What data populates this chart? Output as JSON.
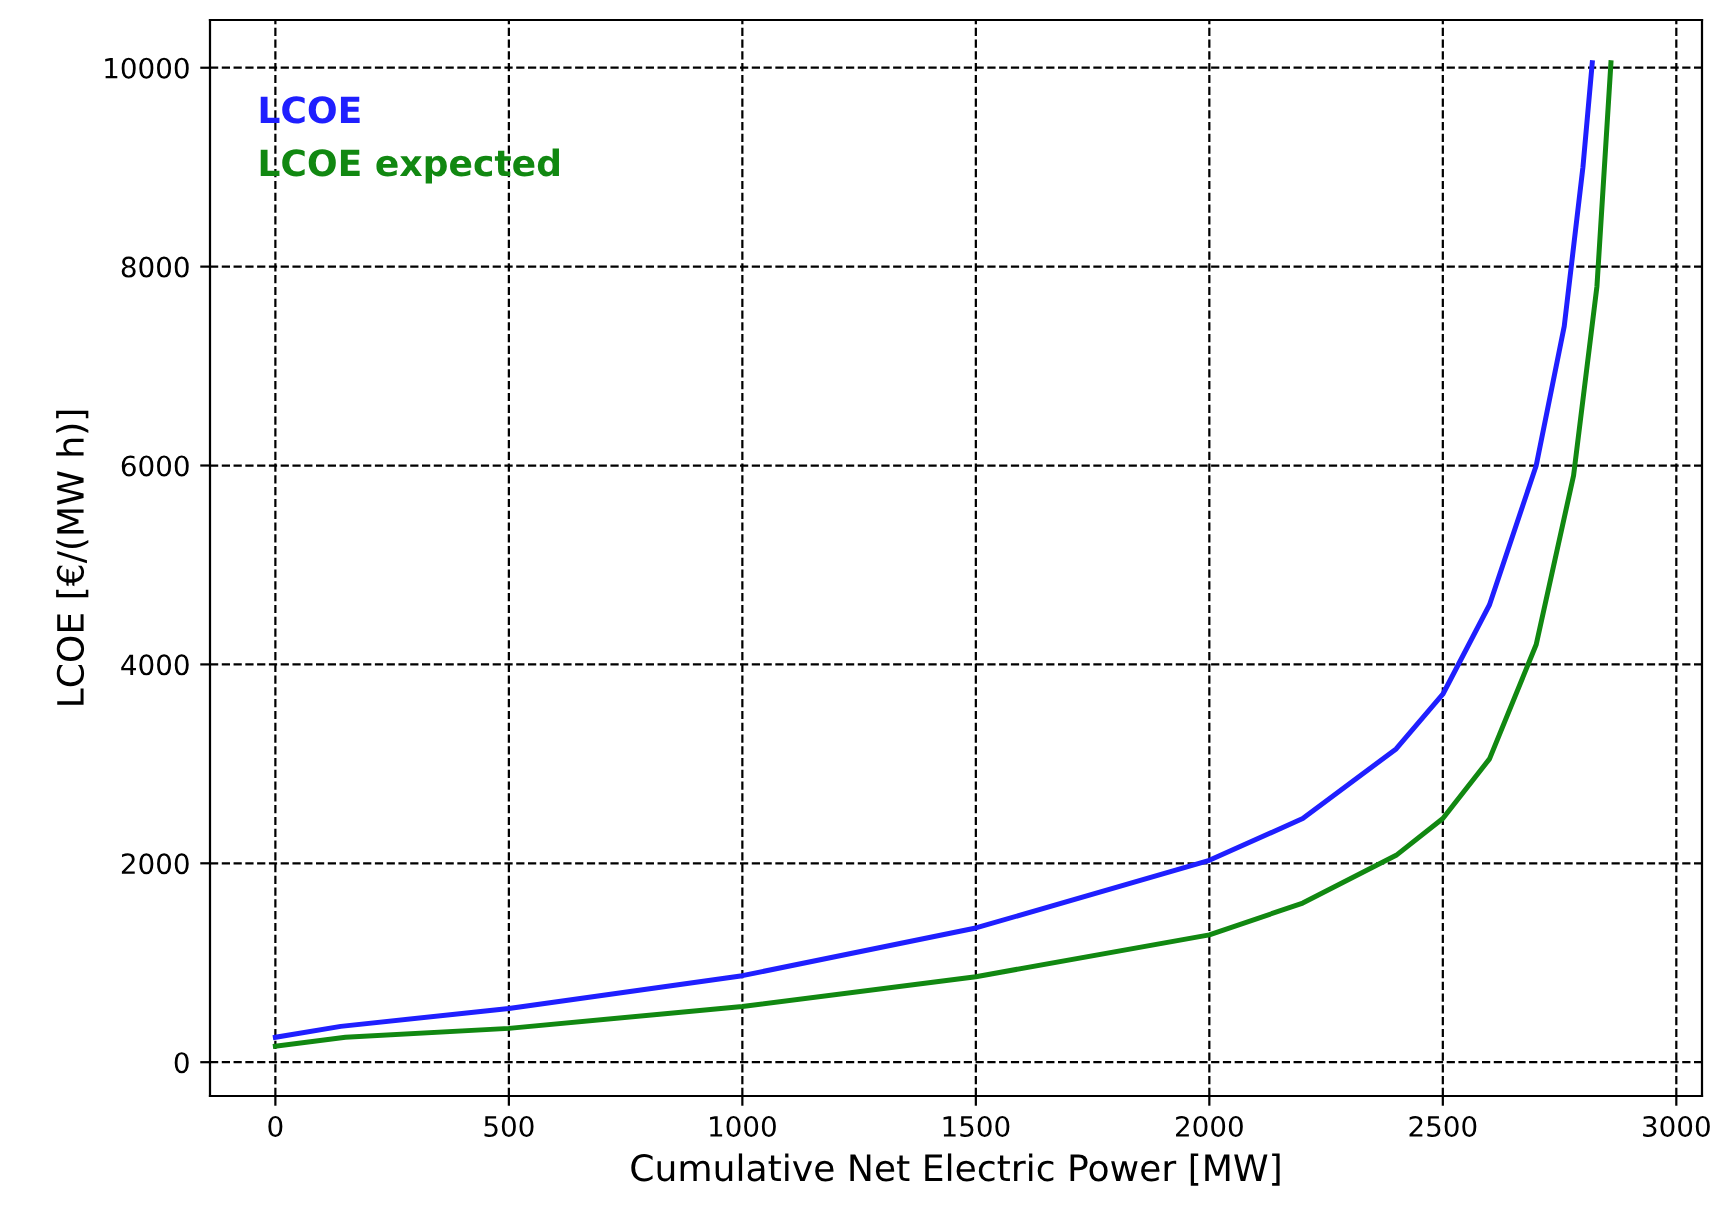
{
  "chart_data": {
    "type": "line",
    "xlabel": "Cumulative Net Electric Power [MW]",
    "ylabel": "LCOE [€/(MW h)]",
    "xlim": [
      -140,
      3055
    ],
    "ylim": [
      -340,
      10480
    ],
    "xticks": [
      0,
      500,
      1000,
      1500,
      2000,
      2500,
      3000
    ],
    "yticks": [
      0,
      2000,
      4000,
      6000,
      8000,
      10000
    ],
    "grid": true,
    "legend": "top left",
    "series": [
      {
        "name": "LCOE",
        "color": "#1f1fff",
        "x": [
          0,
          140,
          500,
          1000,
          1500,
          2000,
          2200,
          2400,
          2500,
          2600,
          2700,
          2760,
          2800,
          2820
        ],
        "values": [
          250,
          360,
          540,
          870,
          1350,
          2030,
          2450,
          3150,
          3700,
          4600,
          6000,
          7400,
          9000,
          10050
        ]
      },
      {
        "name": "LCOE expected",
        "color": "#118811",
        "x": [
          0,
          150,
          500,
          1000,
          1500,
          2000,
          2200,
          2400,
          2500,
          2600,
          2700,
          2780,
          2830,
          2860
        ],
        "values": [
          160,
          250,
          340,
          560,
          860,
          1280,
          1600,
          2080,
          2450,
          3050,
          4200,
          5900,
          7800,
          10050
        ]
      }
    ]
  }
}
